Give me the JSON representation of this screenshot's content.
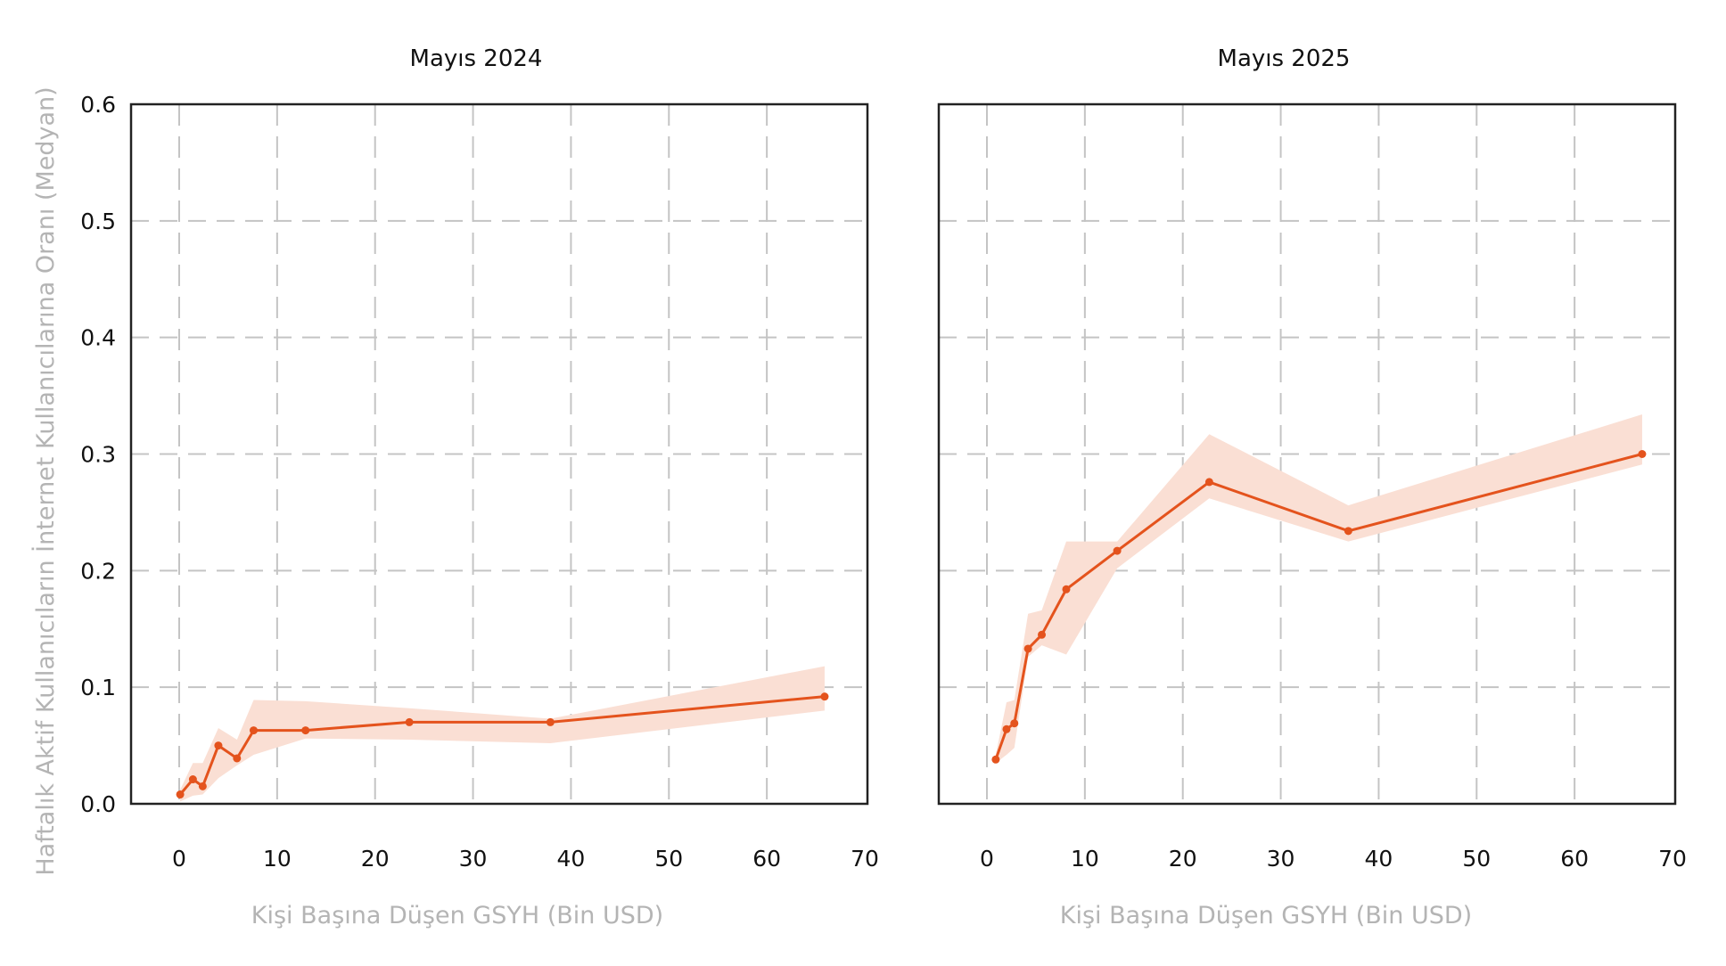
{
  "colors": {
    "line": "#e4531d",
    "band": "#fadfd4",
    "grid": "#c4c4c4",
    "axis": "#222222",
    "label": "#b4b4b4"
  },
  "chart_data": [
    {
      "type": "line",
      "title": "Mayıs 2024",
      "xlabel": "Kişi Başına Düşen GSYH (Bin USD)",
      "ylabel": "Haftalık Aktif Kullanıcıların İnternet Kullanıcılarına Oranı (Medyan)",
      "xlim": [
        -5,
        70
      ],
      "ylim": [
        0,
        0.6
      ],
      "xticks": [
        "0",
        "10",
        "20",
        "30",
        "40",
        "50",
        "60",
        "70"
      ],
      "yticks": [
        "0.0",
        "0.1",
        "0.2",
        "0.3",
        "0.4",
        "0.5",
        "0.6"
      ],
      "grid": true,
      "x": [
        0.1,
        1.4,
        2.4,
        4.0,
        5.9,
        7.6,
        12.9,
        23.5,
        37.9,
        65.9
      ],
      "y": [
        0.008,
        0.021,
        0.015,
        0.05,
        0.039,
        0.063,
        0.063,
        0.07,
        0.07,
        0.092
      ],
      "lower": [
        0.002,
        0.007,
        0.008,
        0.022,
        0.033,
        0.042,
        0.056,
        0.055,
        0.052,
        0.08
      ],
      "upper": [
        0.012,
        0.035,
        0.035,
        0.065,
        0.055,
        0.089,
        0.088,
        0.082,
        0.073,
        0.118
      ]
    },
    {
      "type": "line",
      "title": "Mayıs 2025",
      "xlabel": "Kişi Başına Düşen GSYH (Bin USD)",
      "xlim": [
        -5,
        70
      ],
      "ylim": [
        0,
        0.6
      ],
      "xticks": [
        "0",
        "10",
        "20",
        "30",
        "40",
        "50",
        "60",
        "70"
      ],
      "grid": true,
      "x": [
        0.9,
        2.0,
        2.8,
        4.2,
        5.6,
        8.1,
        13.3,
        22.7,
        36.9,
        66.9
      ],
      "y": [
        0.038,
        0.064,
        0.069,
        0.133,
        0.145,
        0.184,
        0.217,
        0.276,
        0.234,
        0.3
      ],
      "lower": [
        0.035,
        0.042,
        0.048,
        0.126,
        0.136,
        0.128,
        0.202,
        0.262,
        0.225,
        0.291
      ],
      "upper": [
        0.042,
        0.087,
        0.089,
        0.163,
        0.166,
        0.225,
        0.225,
        0.317,
        0.256,
        0.334
      ]
    }
  ]
}
